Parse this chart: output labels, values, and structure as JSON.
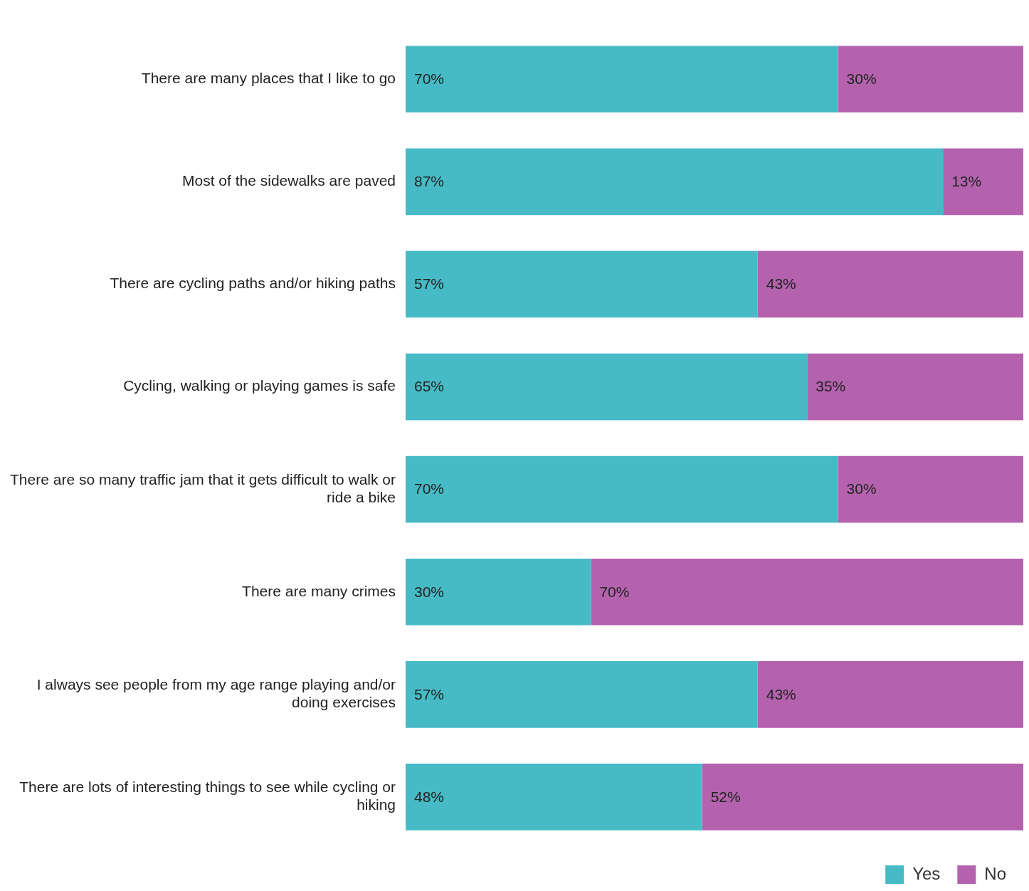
{
  "chart_data": {
    "type": "bar",
    "orientation": "horizontal",
    "stacked": true,
    "grid": false,
    "legend": "bottom right",
    "categories": [
      "There are many places that I like to go",
      "Most of the sidewalks are paved",
      "There are cycling paths and/or hiking paths",
      "Cycling, walking or playing games is safe",
      "There are so many traffic jam that it gets difficult to walk or ride a bike",
      "There are many crimes",
      "I always see people from my age range playing and/or doing exercises",
      "There are lots of interesting things to see while cycling or hiking"
    ],
    "series": [
      {
        "name": "Yes",
        "color": "#46bbc6",
        "values": [
          70,
          87,
          57,
          65,
          70,
          30,
          57,
          48
        ],
        "value_labels": [
          "70%",
          "87%",
          "57%",
          "65%",
          "70%",
          "30%",
          "57%",
          "48%"
        ]
      },
      {
        "name": "No",
        "color": "#b462ae",
        "values": [
          30,
          13,
          43,
          35,
          30,
          70,
          43,
          52
        ],
        "value_labels": [
          "30%",
          "13%",
          "43%",
          "35%",
          "30%",
          "70%",
          "43%",
          "52%"
        ]
      }
    ]
  }
}
